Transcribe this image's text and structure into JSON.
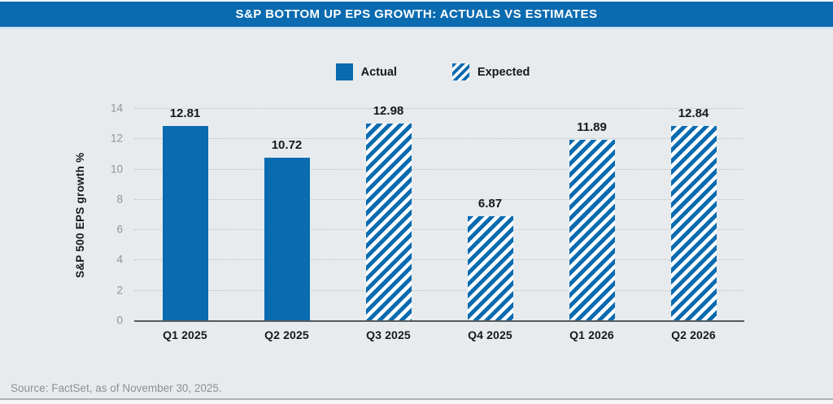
{
  "header": {
    "title": "S&P BOTTOM UP EPS GROWTH: ACTUALS VS ESTIMATES"
  },
  "legend": {
    "actual_label": "Actual",
    "expected_label": "Expected"
  },
  "footer": {
    "source": "Source: FactSet, as of November 30, 2025."
  },
  "colors": {
    "brand_blue": "#0A6BB0",
    "panel_bg": "#E7EBEE",
    "title_text": "#FFFFFF",
    "axis_tick_text": "#8D9499",
    "label_text": "#16181A",
    "source_text": "#8B9196",
    "gridline": "#BCC3C8",
    "baseline": "#55595C"
  },
  "chart_data": {
    "type": "bar",
    "title": "S&P BOTTOM UP EPS GROWTH: ACTUALS VS ESTIMATES",
    "xlabel": "",
    "ylabel": "S&P 500 EPS growth %",
    "categories": [
      "Q1 2025",
      "Q2 2025",
      "Q3 2025",
      "Q4 2025",
      "Q1 2026",
      "Q2 2026"
    ],
    "values": [
      12.81,
      10.72,
      12.98,
      6.87,
      11.89,
      12.84
    ],
    "value_labels": [
      "12.81",
      "10.72",
      "12.98",
      "6.87",
      "11.89",
      "12.84"
    ],
    "bar_styles": [
      "actual",
      "actual",
      "expected",
      "expected",
      "expected",
      "expected"
    ],
    "series": [
      {
        "name": "Actual",
        "style": "solid",
        "values": [
          12.81,
          10.72,
          null,
          null,
          null,
          null
        ]
      },
      {
        "name": "Expected",
        "style": "diagonal-stripes",
        "values": [
          null,
          null,
          12.98,
          6.87,
          11.89,
          12.84
        ]
      }
    ],
    "ylim": [
      0,
      14
    ],
    "yticks": [
      0,
      2,
      4,
      6,
      8,
      10,
      12,
      14
    ],
    "grid": "horizontal dotted",
    "legend_position": "top-center"
  }
}
